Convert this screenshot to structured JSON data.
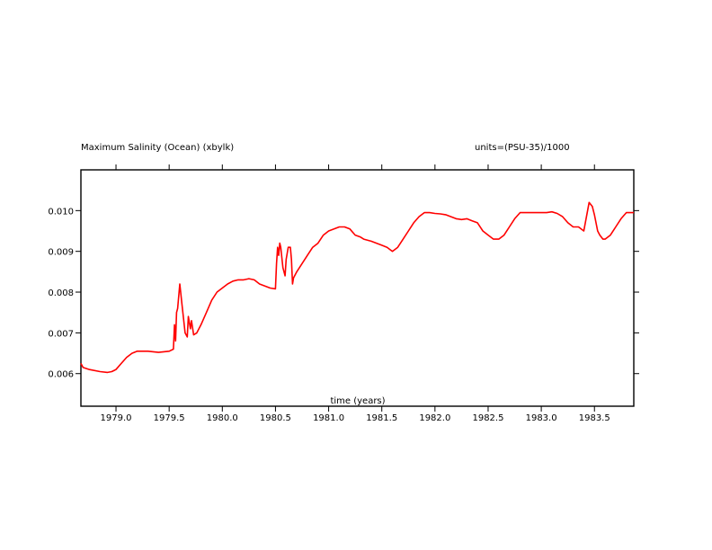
{
  "header": {
    "left": "Maximum Salinity (Ocean) (xbylk)",
    "right": "units=(PSU-35)/1000"
  },
  "chart_data": {
    "type": "line",
    "title": "Maximum Salinity (Ocean) (xbylk)",
    "units": "units=(PSU-35)/1000",
    "xlabel": "time (years)",
    "ylabel": "",
    "xlim": [
      1978.67,
      1983.87
    ],
    "ylim": [
      0.0052,
      0.011
    ],
    "x_ticks": [
      1979.0,
      1979.5,
      1980.0,
      1980.5,
      1981.0,
      1981.5,
      1982.0,
      1982.5,
      1983.0,
      1983.5
    ],
    "x_tick_labels": [
      "1979.0",
      "1979.5",
      "1980.0",
      "1980.5",
      "1981.0",
      "1981.5",
      "1982.0",
      "1982.5",
      "1983.0",
      "1983.5"
    ],
    "y_ticks": [
      0.006,
      0.007,
      0.008,
      0.009,
      0.01
    ],
    "y_tick_labels": [
      "0.006",
      "0.007",
      "0.008",
      "0.009",
      "0.010"
    ],
    "grid": false,
    "line_color": "#ff0000",
    "series": [
      {
        "x": [
          1978.67,
          1978.69,
          1978.75,
          1978.85,
          1978.92,
          1978.96,
          1979.0,
          1979.05,
          1979.1,
          1979.15,
          1979.2,
          1979.3,
          1979.4,
          1979.5,
          1979.54,
          1979.55,
          1979.56,
          1979.57,
          1979.58,
          1979.6,
          1979.62,
          1979.65,
          1979.67,
          1979.68,
          1979.7,
          1979.71,
          1979.73,
          1979.76,
          1979.8,
          1979.85,
          1979.9,
          1979.95,
          1980.0,
          1980.05,
          1980.1,
          1980.15,
          1980.2,
          1980.25,
          1980.3,
          1980.35,
          1980.4,
          1980.45,
          1980.5,
          1980.51,
          1980.52,
          1980.53,
          1980.54,
          1980.55,
          1980.57,
          1980.59,
          1980.6,
          1980.62,
          1980.64,
          1980.65,
          1980.66,
          1980.67,
          1980.7,
          1980.75,
          1980.8,
          1980.85,
          1980.9,
          1980.95,
          1981.0,
          1981.05,
          1981.1,
          1981.15,
          1981.2,
          1981.25,
          1981.3,
          1981.33,
          1981.4,
          1981.45,
          1981.5,
          1981.55,
          1981.6,
          1981.65,
          1981.7,
          1981.75,
          1981.8,
          1981.85,
          1981.9,
          1981.95,
          1982.0,
          1982.05,
          1982.1,
          1982.15,
          1982.2,
          1982.25,
          1982.3,
          1982.35,
          1982.4,
          1982.45,
          1982.5,
          1982.55,
          1982.6,
          1982.65,
          1982.7,
          1982.75,
          1982.8,
          1982.85,
          1983.0,
          1983.05,
          1983.1,
          1983.15,
          1983.2,
          1983.25,
          1983.3,
          1983.35,
          1983.4,
          1983.45,
          1983.48,
          1983.5,
          1983.53,
          1983.55,
          1983.58,
          1983.6,
          1983.65,
          1983.7,
          1983.75,
          1983.8,
          1983.87
        ],
        "y": [
          0.00625,
          0.00615,
          0.0061,
          0.00605,
          0.00603,
          0.00605,
          0.0061,
          0.00625,
          0.0064,
          0.0065,
          0.00655,
          0.00655,
          0.00652,
          0.00655,
          0.0066,
          0.0072,
          0.0068,
          0.0075,
          0.0076,
          0.0082,
          0.0077,
          0.007,
          0.0069,
          0.0074,
          0.0071,
          0.0073,
          0.00695,
          0.007,
          0.0072,
          0.0075,
          0.0078,
          0.008,
          0.0081,
          0.0082,
          0.00827,
          0.0083,
          0.0083,
          0.00833,
          0.0083,
          0.0082,
          0.00815,
          0.0081,
          0.00808,
          0.0087,
          0.0091,
          0.0089,
          0.0092,
          0.0091,
          0.0086,
          0.0084,
          0.0088,
          0.0091,
          0.0091,
          0.0088,
          0.0082,
          0.00835,
          0.0085,
          0.0087,
          0.0089,
          0.0091,
          0.0092,
          0.0094,
          0.0095,
          0.00955,
          0.0096,
          0.0096,
          0.00955,
          0.0094,
          0.00935,
          0.0093,
          0.00925,
          0.0092,
          0.00915,
          0.0091,
          0.009,
          0.0091,
          0.0093,
          0.0095,
          0.0097,
          0.00985,
          0.00995,
          0.00995,
          0.00993,
          0.00992,
          0.0099,
          0.00985,
          0.0098,
          0.00978,
          0.0098,
          0.00975,
          0.0097,
          0.0095,
          0.0094,
          0.0093,
          0.0093,
          0.0094,
          0.0096,
          0.0098,
          0.00995,
          0.00995,
          0.00995,
          0.00995,
          0.00997,
          0.00993,
          0.00985,
          0.0097,
          0.0096,
          0.0096,
          0.0095,
          0.0102,
          0.0101,
          0.0099,
          0.0095,
          0.0094,
          0.0093,
          0.0093,
          0.0094,
          0.0096,
          0.0098,
          0.00995,
          0.00995
        ]
      }
    ]
  }
}
